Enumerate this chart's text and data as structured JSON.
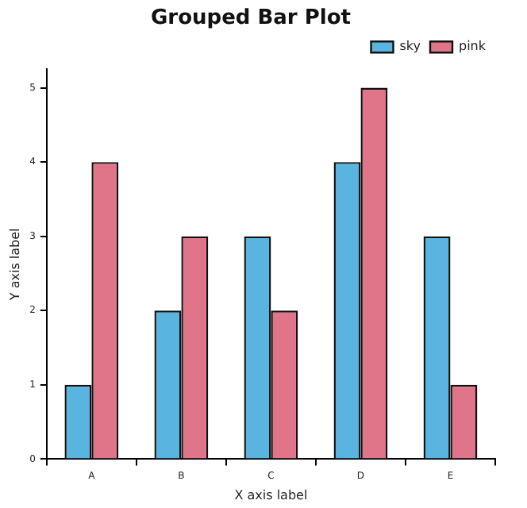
{
  "chart_data": {
    "type": "bar",
    "title": "Grouped Bar Plot",
    "xlabel": "X axis label",
    "ylabel": "Y axis label",
    "categories": [
      "A",
      "B",
      "C",
      "D",
      "E"
    ],
    "series": [
      {
        "name": "sky",
        "color": "#5ab4e0",
        "values": [
          1,
          2,
          3,
          4,
          3
        ]
      },
      {
        "name": "pink",
        "color": "#e0758a",
        "values": [
          4,
          3,
          2,
          5,
          1
        ]
      }
    ],
    "ylim": [
      0,
      5.25
    ],
    "yticks": [
      0,
      1,
      2,
      3,
      4,
      5
    ],
    "grid": false,
    "legend": "top right"
  }
}
